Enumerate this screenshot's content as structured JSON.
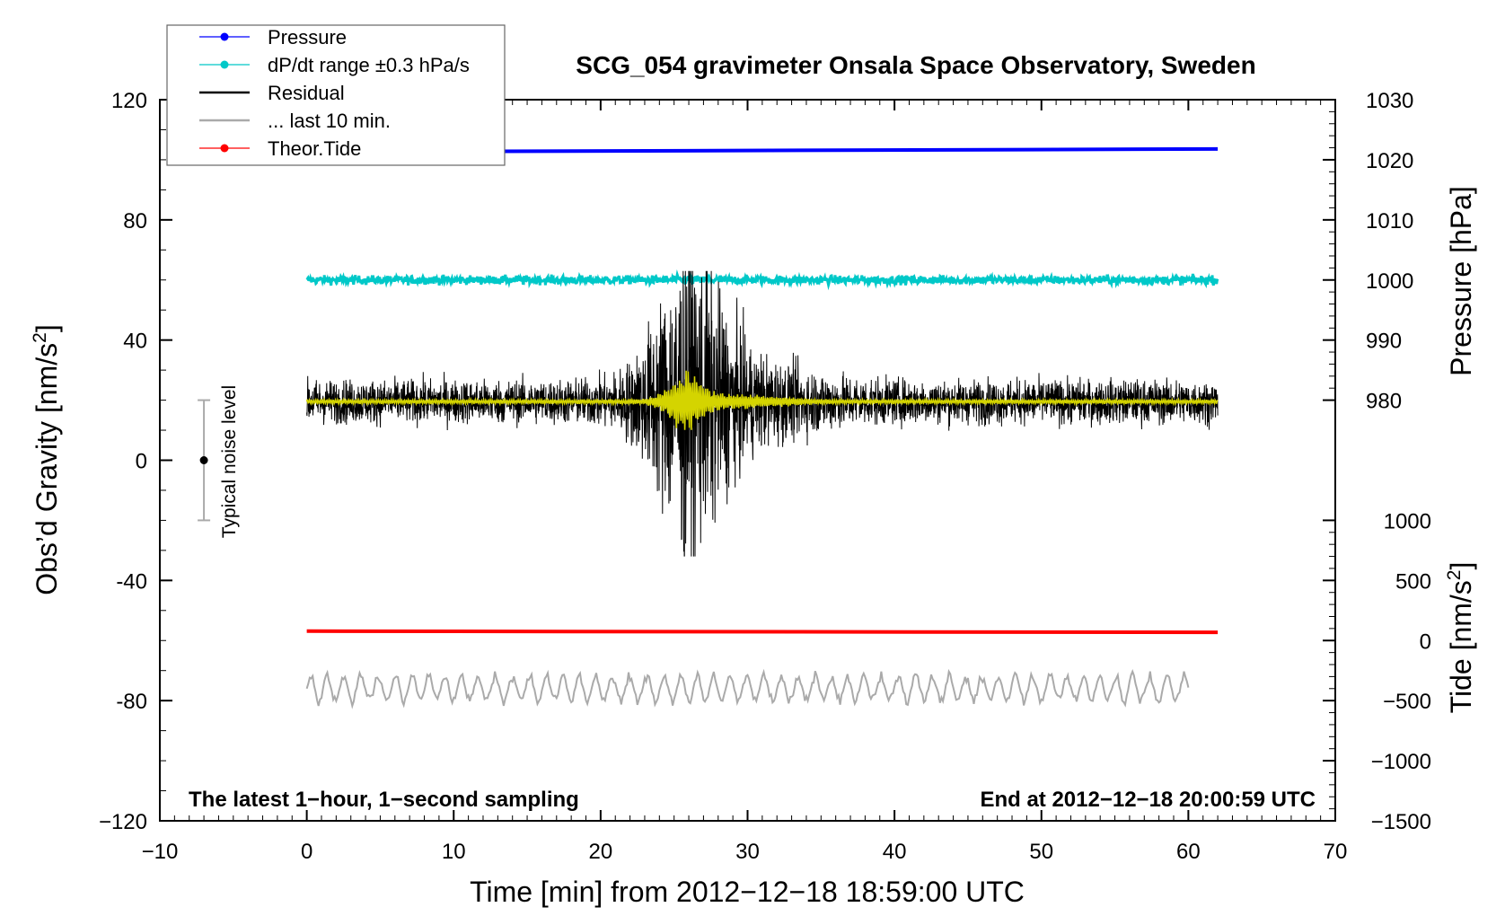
{
  "chart_data": {
    "type": "line",
    "title": "SCG_054 gravimeter Onsala Space Observatory, Sweden",
    "xlabel": "Time [min] from 2012−12−18 18:59:00 UTC",
    "ylabel_left_main": "Obs’d Gravity [nm/s",
    "ylabel_left_sup": "2",
    "ylabel_left_end": "]",
    "ylabel_right_pressure": "Pressure [hPa]",
    "ylabel_right_tide_main": "Tide [nm/s",
    "ylabel_right_tide_sup": "2",
    "ylabel_right_tide_end": "]",
    "xlim": [
      -10,
      70
    ],
    "ylim": [
      -120,
      120
    ],
    "pressure_axis_range": [
      980,
      1030
    ],
    "tide_axis_range": [
      -1500,
      1000
    ],
    "x_ticks": [
      "−10",
      "0",
      "10",
      "20",
      "30",
      "40",
      "50",
      "60",
      "70"
    ],
    "x_tick_values": [
      -10,
      0,
      10,
      20,
      30,
      40,
      50,
      60,
      70
    ],
    "y_ticks": [
      "120",
      "80",
      "40",
      "0",
      "-40",
      "-80",
      "−120"
    ],
    "y_tick_values": [
      120,
      80,
      40,
      0,
      -40,
      -80,
      -120
    ],
    "pressure_ticks": [
      "1030",
      "1020",
      "1010",
      "1000",
      "990",
      "980"
    ],
    "pressure_tick_values": [
      1030,
      1020,
      1010,
      1000,
      990,
      980
    ],
    "tide_ticks": [
      "1000",
      "500",
      "0",
      "−500",
      "−1000",
      "−1500"
    ],
    "tide_tick_values": [
      1000,
      500,
      0,
      -500,
      -1000,
      -1500
    ],
    "legend": [
      {
        "name": "Pressure",
        "color": "#0000ff",
        "marker": true
      },
      {
        "name": "dP/dt range ±0.3 hPa/s",
        "color": "#00c8c8",
        "marker": true
      },
      {
        "name": "Residual",
        "color": "#000000",
        "marker": false
      },
      {
        "name": "... last 10 min.",
        "color": "#aaaaaa",
        "marker": false
      },
      {
        "name": "Theor.Tide",
        "color": "#ff0000",
        "marker": true
      }
    ],
    "annotation_left": "The latest 1−hour, 1−second sampling",
    "annotation_right": "End at 2012−12−18 20:00:59 UTC",
    "noise_label": "Typical noise level",
    "noise_bar": {
      "x": -7,
      "center": 0,
      "low": -20,
      "high": 20
    },
    "series": [
      {
        "name": "Pressure",
        "color": "#0000ff",
        "axis": "pressure",
        "x_start": 0,
        "x_end": 62,
        "y_start": 1021.3,
        "y_end": 1021.8
      },
      {
        "name": "dP/dt range ±0.3 hPa/s",
        "color": "#00c8c8",
        "axis": "pressure",
        "x_start": 0,
        "x_end": 62,
        "y": 1000
      },
      {
        "name": "Residual",
        "color": "#000000",
        "axis": "gravity",
        "x_start": 0,
        "x_end": 62,
        "baseline": 19.5,
        "max": 63,
        "min": -32,
        "event_peak_minute": 26
      },
      {
        "name": "Residual smoothed",
        "color": "#d4d400",
        "axis": "gravity",
        "x_start": 0,
        "x_end": 62,
        "baseline": 19.5
      },
      {
        "name": "... last 10 min.",
        "color": "#aaaaaa",
        "axis": "gravity",
        "x_start": 0,
        "x_end": 60,
        "baseline": -76
      },
      {
        "name": "Theor.Tide",
        "color": "#ff0000",
        "axis": "tide",
        "x_start": 0,
        "x_end": 62,
        "y_start": 78,
        "y_end": 68
      }
    ]
  }
}
